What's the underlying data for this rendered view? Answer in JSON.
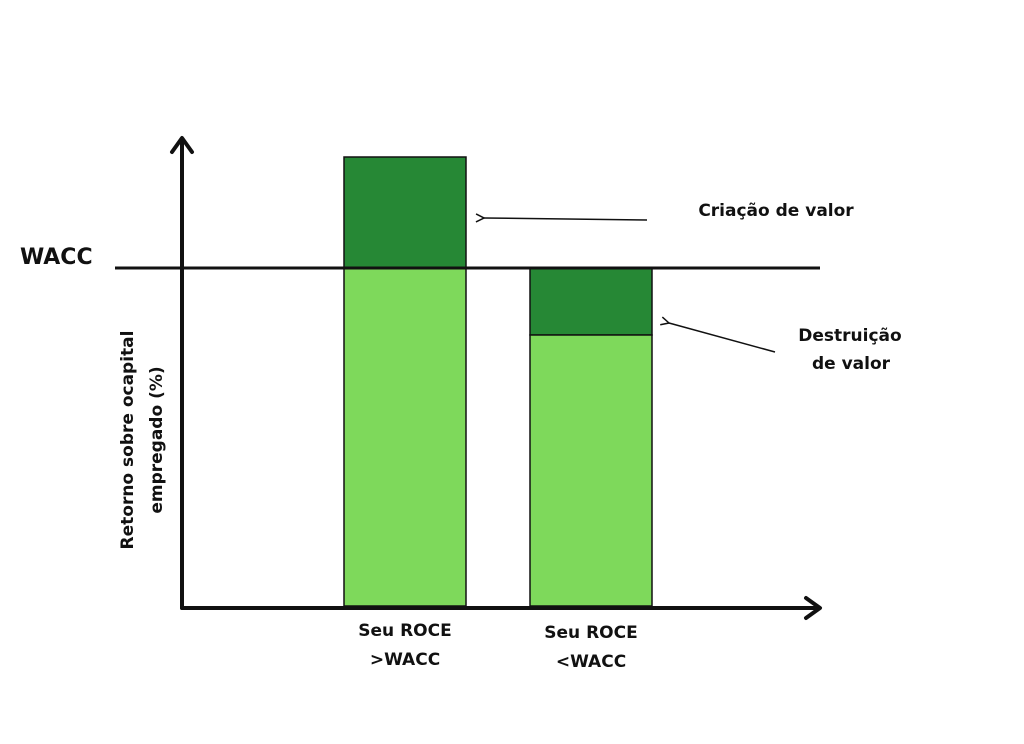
{
  "wacc_label": "WACC",
  "y_axis_label": [
    "Retorno sobre ocapital",
    "empregado  (%)"
  ],
  "bars": [
    {
      "label": [
        "Seu ROCE",
        ">WACC"
      ]
    },
    {
      "label": [
        "Seu ROCE",
        "<WACC"
      ]
    }
  ],
  "annotations": [
    {
      "text": [
        "Criação de valor"
      ]
    },
    {
      "text": [
        "Destruição",
        "de valor"
      ]
    }
  ]
}
